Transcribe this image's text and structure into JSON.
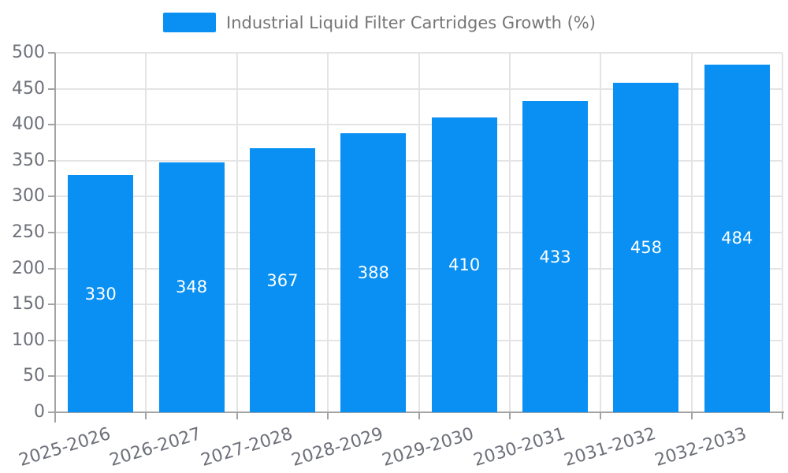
{
  "legend": {
    "label": "Industrial Liquid Filter Cartridges Growth (%)"
  },
  "chart_data": {
    "type": "bar",
    "title": "Industrial Liquid Filter Cartridges Growth (%)",
    "categories": [
      "2025-2026",
      "2026-2027",
      "2027-2028",
      "2028-2029",
      "2029-2030",
      "2030-2031",
      "2031-2032",
      "2032-2033"
    ],
    "values": [
      330,
      348,
      367,
      388,
      410,
      433,
      458,
      484
    ],
    "xlabel": "",
    "ylabel": "",
    "ylim": [
      0,
      500
    ],
    "ytick_step": 50,
    "yticks": [
      0,
      50,
      100,
      150,
      200,
      250,
      300,
      350,
      400,
      450,
      500
    ],
    "grid": true,
    "legend_position": "top-center",
    "value_labels": "inside-center"
  },
  "colors": {
    "bar": "#0a90f3",
    "axis_line": "#a3a3a3",
    "gridline": "#e4e4e4",
    "tick_label": "#6e7079",
    "legend_text": "#757575",
    "value_label": "#ffffff",
    "background": "#ffffff"
  }
}
